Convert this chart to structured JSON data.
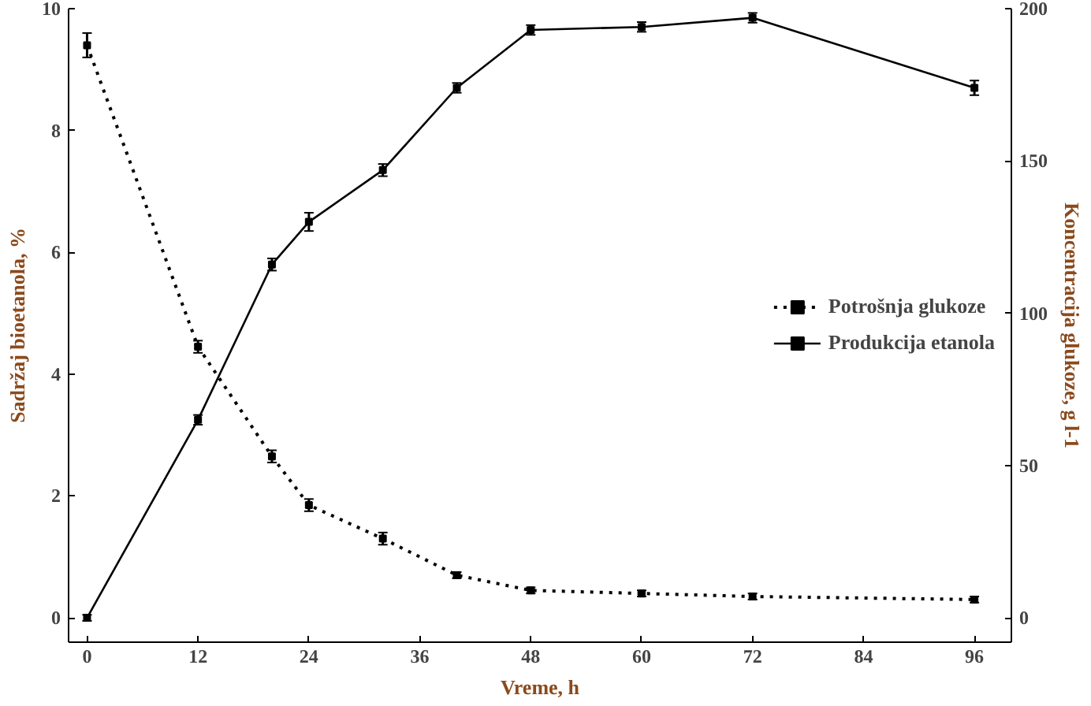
{
  "chart_data": {
    "type": "line",
    "xlabel": "Vreme, h",
    "ylabel": "Sadržaj bioetanola, %",
    "y2label": "Koncentracija glukoze, g l-1",
    "x": [
      0,
      12,
      20,
      24,
      32,
      40,
      48,
      60,
      72,
      96
    ],
    "xlim": [
      -2,
      100
    ],
    "xticks": [
      0,
      12,
      24,
      36,
      48,
      60,
      72,
      84,
      96
    ],
    "ylim": [
      -0.4,
      10
    ],
    "yticks": [
      0,
      2,
      4,
      6,
      8,
      10
    ],
    "y2lim": [
      -8,
      200
    ],
    "y2ticks": [
      0,
      50,
      100,
      150,
      200
    ],
    "legend": "right",
    "grid": false,
    "series": [
      {
        "name": "Potrošnja glukoze",
        "color": "#000000",
        "axis": "y2",
        "line_style": "dotted",
        "marker": "square",
        "values": [
          188,
          89,
          53,
          37,
          26,
          14,
          9,
          8,
          7,
          6
        ],
        "errors": [
          4,
          2,
          2,
          2,
          2,
          1,
          1,
          1,
          1,
          1
        ]
      },
      {
        "name": "Produkcija etanola",
        "color": "#000000",
        "line_style": "solid",
        "marker": "square",
        "values": [
          0,
          3.25,
          5.8,
          6.5,
          7.35,
          8.7,
          9.65,
          9.7,
          9.85,
          8.7
        ],
        "errors": [
          0.05,
          0.08,
          0.1,
          0.15,
          0.1,
          0.08,
          0.08,
          0.08,
          0.08,
          0.12
        ]
      }
    ]
  }
}
